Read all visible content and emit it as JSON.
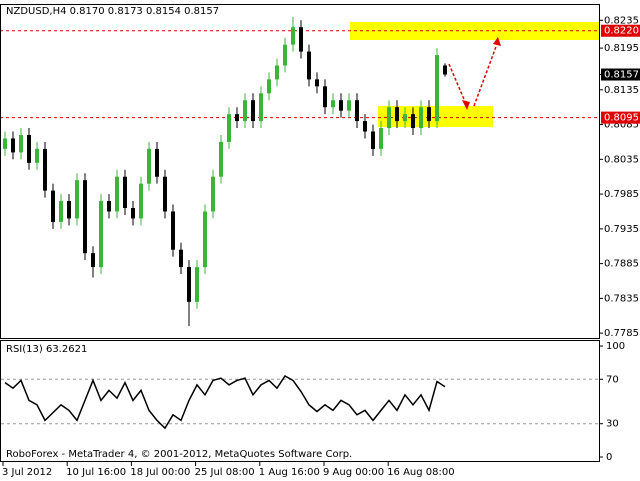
{
  "chart_data": {
    "type": "candlestick",
    "title": "NZDUSD,H4 0.8170 0.8173 0.8154 0.8157",
    "watermark": "RoboForex - MetaTrader 4, © 2001-2012, MetaQuotes Software Corp.",
    "categories": [
      "3 Jul 2012",
      "10 Jul 16:00",
      "18 Jul 00:00",
      "25 Jul 08:00",
      "1 Aug 16:00",
      "9 Aug 00:00",
      "16 Aug 08:00"
    ],
    "up_color": "#3cb43c",
    "down_color": "#000000",
    "open": [
      0.805,
      0.8065,
      0.8045,
      0.807,
      0.803,
      0.805,
      0.799,
      0.7945,
      0.7975,
      0.795,
      0.8005,
      0.79,
      0.788,
      0.7975,
      0.796,
      0.801,
      0.7965,
      0.795,
      0.8,
      0.805,
      0.801,
      0.796,
      0.7905,
      0.788,
      0.783,
      0.788,
      0.796,
      0.801,
      0.806,
      0.81,
      0.809,
      0.812,
      0.809,
      0.813,
      0.815,
      0.817,
      0.82,
      0.8225,
      0.819,
      0.815,
      0.814,
      0.811,
      0.812,
      0.8105,
      0.812,
      0.809,
      0.8075,
      0.805,
      0.808,
      0.811,
      0.809,
      0.81,
      0.808,
      0.811,
      0.809,
      0.817
    ],
    "high": [
      0.8075,
      0.8075,
      0.808,
      0.808,
      0.806,
      0.806,
      0.8,
      0.7985,
      0.7985,
      0.8015,
      0.8015,
      0.791,
      0.7985,
      0.7985,
      0.802,
      0.802,
      0.7975,
      0.801,
      0.806,
      0.806,
      0.802,
      0.797,
      0.7915,
      0.789,
      0.789,
      0.797,
      0.802,
      0.807,
      0.811,
      0.811,
      0.813,
      0.813,
      0.814,
      0.816,
      0.818,
      0.821,
      0.824,
      0.8235,
      0.82,
      0.816,
      0.815,
      0.813,
      0.813,
      0.813,
      0.813,
      0.81,
      0.8085,
      0.809,
      0.812,
      0.812,
      0.811,
      0.811,
      0.812,
      0.812,
      0.8195,
      0.8173
    ],
    "low": [
      0.804,
      0.8035,
      0.8035,
      0.802,
      0.802,
      0.798,
      0.7935,
      0.7935,
      0.794,
      0.794,
      0.789,
      0.7865,
      0.787,
      0.795,
      0.795,
      0.7955,
      0.794,
      0.794,
      0.799,
      0.8,
      0.795,
      0.7895,
      0.787,
      0.7795,
      0.782,
      0.787,
      0.795,
      0.8,
      0.805,
      0.808,
      0.808,
      0.808,
      0.808,
      0.812,
      0.814,
      0.816,
      0.819,
      0.818,
      0.814,
      0.813,
      0.81,
      0.81,
      0.8095,
      0.8095,
      0.808,
      0.8065,
      0.804,
      0.804,
      0.807,
      0.808,
      0.808,
      0.807,
      0.807,
      0.808,
      0.808,
      0.8154
    ],
    "close": [
      0.8065,
      0.8045,
      0.807,
      0.803,
      0.805,
      0.799,
      0.7945,
      0.7975,
      0.795,
      0.8005,
      0.79,
      0.788,
      0.7975,
      0.796,
      0.801,
      0.7965,
      0.795,
      0.8,
      0.805,
      0.801,
      0.796,
      0.7905,
      0.788,
      0.783,
      0.788,
      0.796,
      0.801,
      0.806,
      0.81,
      0.809,
      0.812,
      0.809,
      0.813,
      0.815,
      0.817,
      0.82,
      0.8225,
      0.819,
      0.815,
      0.814,
      0.811,
      0.812,
      0.8105,
      0.812,
      0.809,
      0.8075,
      0.805,
      0.808,
      0.811,
      0.809,
      0.81,
      0.808,
      0.811,
      0.809,
      0.8185,
      0.8157
    ],
    "ylim": [
      0.7778,
      0.8257
    ],
    "yticks": [
      0.8235,
      0.8195,
      0.8135,
      0.8085,
      0.8035,
      0.7985,
      0.7935,
      0.7885,
      0.7835,
      0.7785
    ],
    "levels": [
      {
        "value": 0.822,
        "label": "0.8220"
      },
      {
        "value": 0.8095,
        "label": "0.8095"
      }
    ],
    "level_color": "#e00000",
    "last_price": {
      "value": 0.8157,
      "label": "0.8157"
    },
    "rsi": {
      "label": "RSI(13) 63.2621",
      "color": "#000000",
      "values": [
        67,
        62,
        69,
        51,
        47,
        33,
        40,
        47,
        42,
        33,
        51,
        69,
        51,
        60,
        53,
        67,
        51,
        60,
        42,
        33,
        26,
        38,
        33,
        51,
        65,
        56,
        69,
        71,
        65,
        69,
        71,
        56,
        65,
        69,
        62,
        73,
        69,
        59,
        47,
        41,
        47,
        42,
        51,
        47,
        38,
        42,
        33,
        42,
        51,
        42,
        56,
        47,
        56,
        42,
        68,
        63.2621
      ],
      "ylim": [
        -4.5,
        104.5
      ],
      "yticks": [
        100,
        70,
        30,
        0
      ],
      "levels": [
        70,
        30
      ]
    }
  }
}
